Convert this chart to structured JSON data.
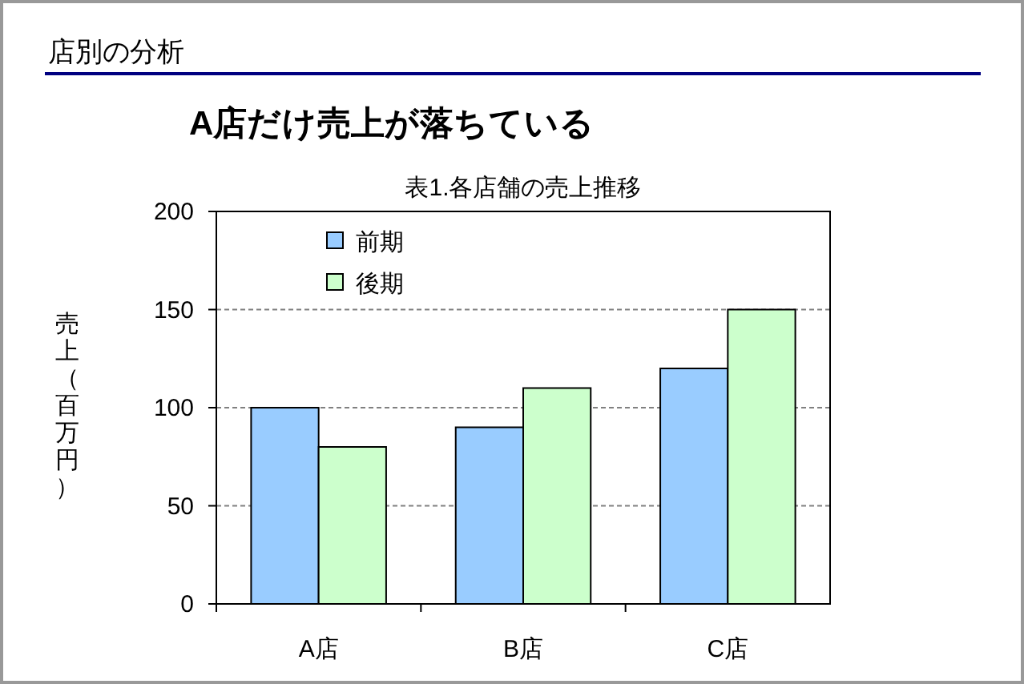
{
  "chart_data": {
    "type": "bar",
    "title": "表1.各店舗の売上推移",
    "ylabel": "売上（百万円）",
    "annotations": [
      "店別の分析",
      "A店だけ売上が落ちている"
    ],
    "categories": [
      "A店",
      "B店",
      "C店"
    ],
    "series": [
      {
        "name": "前期",
        "color": "#99ccff",
        "values": [
          100,
          90,
          120
        ]
      },
      {
        "name": "後期",
        "color": "#ccffcc",
        "values": [
          80,
          110,
          150
        ]
      }
    ],
    "ylim": [
      0,
      200
    ],
    "yticks": [
      0,
      50,
      100,
      150,
      200
    ],
    "grid": "y",
    "legend": "top left"
  }
}
